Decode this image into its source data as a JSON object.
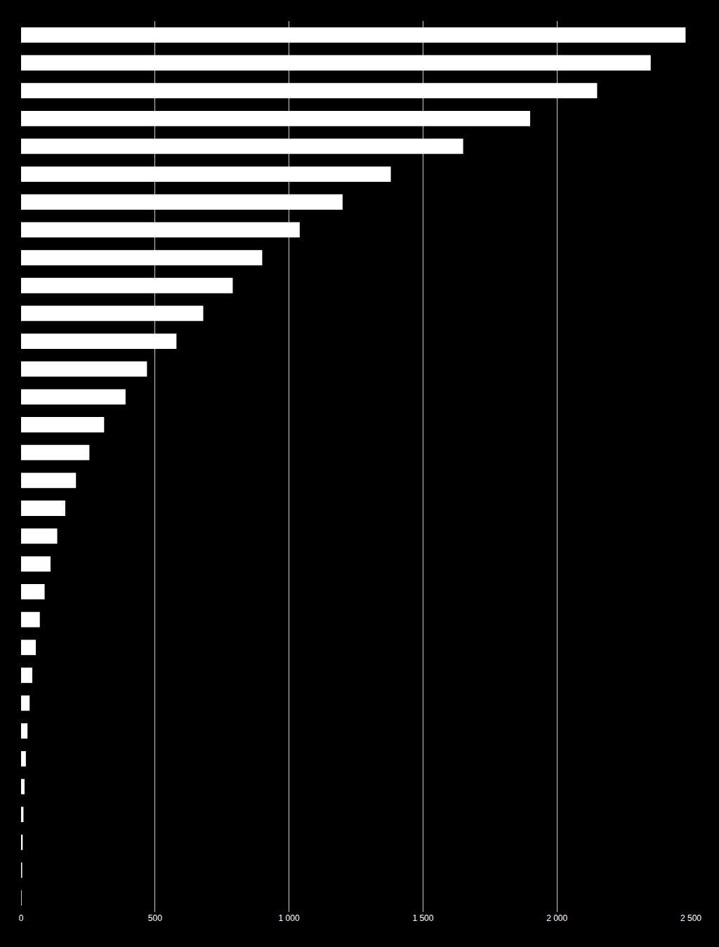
{
  "chart_data": {
    "type": "bar",
    "orientation": "horizontal",
    "categories": [
      null,
      null,
      null,
      null,
      null,
      null,
      null,
      null,
      null,
      null,
      null,
      null,
      null,
      null,
      null,
      null,
      null,
      null,
      null,
      null,
      null,
      null,
      null,
      null,
      null,
      null,
      null,
      null,
      null,
      null,
      null,
      null
    ],
    "values": [
      2480,
      2350,
      2150,
      1900,
      1650,
      1380,
      1200,
      1040,
      900,
      790,
      680,
      580,
      470,
      390,
      310,
      255,
      205,
      165,
      135,
      110,
      88,
      70,
      55,
      42,
      32,
      24,
      18,
      13,
      9,
      6,
      4,
      2
    ],
    "color": "#ffffff",
    "xlim": [
      0,
      2500
    ],
    "xticks": [
      0,
      500,
      {
        "value": 1000,
        "label": "1 000"
      },
      {
        "value": 1500,
        "label": "1 500"
      },
      {
        "value": 2000,
        "label": "2 000"
      },
      {
        "value": 2500,
        "label": "2 500"
      }
    ],
    "grid": true,
    "tick_labels": "x"
  }
}
